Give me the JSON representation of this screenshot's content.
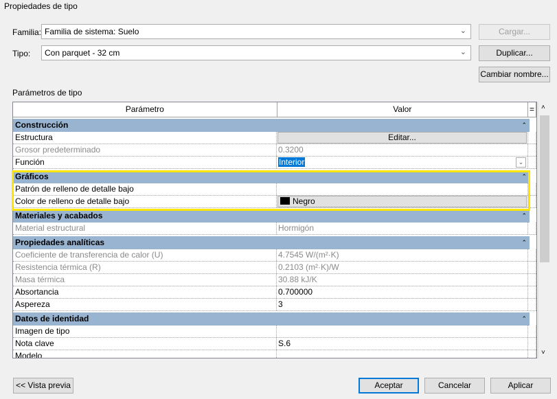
{
  "window_title": "Propiedades de tipo",
  "familia": {
    "label": "Familia:",
    "value": "Familia de sistema: Suelo",
    "load_button": "Cargar..."
  },
  "tipo": {
    "label": "Tipo:",
    "value": "Con parquet - 32 cm",
    "duplicate_button": "Duplicar...",
    "rename_button": "Cambiar nombre..."
  },
  "params_label": "Parámetros de tipo",
  "table": {
    "col_param": "Parámetro",
    "col_value": "Valor",
    "col_eq": "="
  },
  "groups": [
    {
      "name": "Construcción",
      "rows": [
        {
          "param": "Estructura",
          "value": "Editar..."
        },
        {
          "param": "Grosor predeterminado",
          "value": "0.3200"
        },
        {
          "param": "Función",
          "value": "Interior"
        }
      ]
    },
    {
      "name": "Gráficos",
      "rows": [
        {
          "param": "Patrón de relleno de detalle bajo",
          "value": ""
        },
        {
          "param": "Color de relleno de detalle bajo",
          "value": "Negro"
        }
      ]
    },
    {
      "name": "Materiales y acabados",
      "rows": [
        {
          "param": "Material estructural",
          "value": "Hormigón"
        }
      ]
    },
    {
      "name": "Propiedades analíticas",
      "rows": [
        {
          "param": "Coeficiente de transferencia de calor (U)",
          "value": "4.7545 W/(m²·K)"
        },
        {
          "param": "Resistencia térmica (R)",
          "value": "0.2103 (m²·K)/W"
        },
        {
          "param": "Masa térmica",
          "value": "30.88 kJ/K"
        },
        {
          "param": "Absortancia",
          "value": "0.700000"
        },
        {
          "param": "Aspereza",
          "value": "3"
        }
      ]
    },
    {
      "name": "Datos de identidad",
      "rows": [
        {
          "param": "Imagen de tipo",
          "value": ""
        },
        {
          "param": "Nota clave",
          "value": "S.6"
        },
        {
          "param": "Modelo",
          "value": ""
        }
      ]
    }
  ],
  "footer": {
    "preview": "<< Vista previa",
    "ok": "Aceptar",
    "cancel": "Cancelar",
    "apply": "Aplicar"
  },
  "colors": {
    "category": "#98b4d0",
    "highlight": "#ffe600",
    "selection": "#0078d7",
    "swatch": "#000000"
  }
}
